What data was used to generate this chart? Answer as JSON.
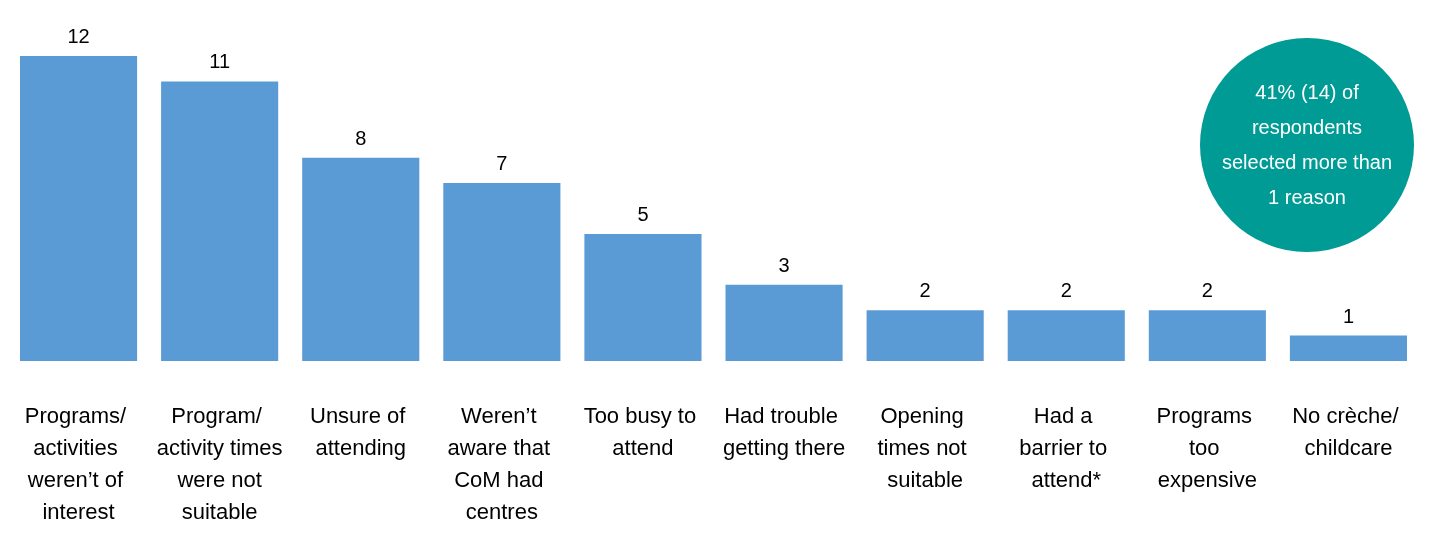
{
  "chart_data": {
    "type": "bar",
    "categories": [
      "Programs/ activities weren’t of interest",
      "Program/ activity times were not suitable",
      "Unsure of attending",
      "Weren’t aware that CoM had centres",
      "Too busy to attend",
      "Had trouble getting there",
      "Opening times not suitable",
      "Had a barrier to attend*",
      "Programs too expensive",
      "No crèche/ childcare"
    ],
    "values": [
      12,
      11,
      8,
      7,
      5,
      3,
      2,
      2,
      2,
      1
    ],
    "color": "#5b9bd5",
    "data_labels": true,
    "grid": false,
    "annotations": [
      "41% (14) of respondents selected more than 1 reason"
    ]
  }
}
